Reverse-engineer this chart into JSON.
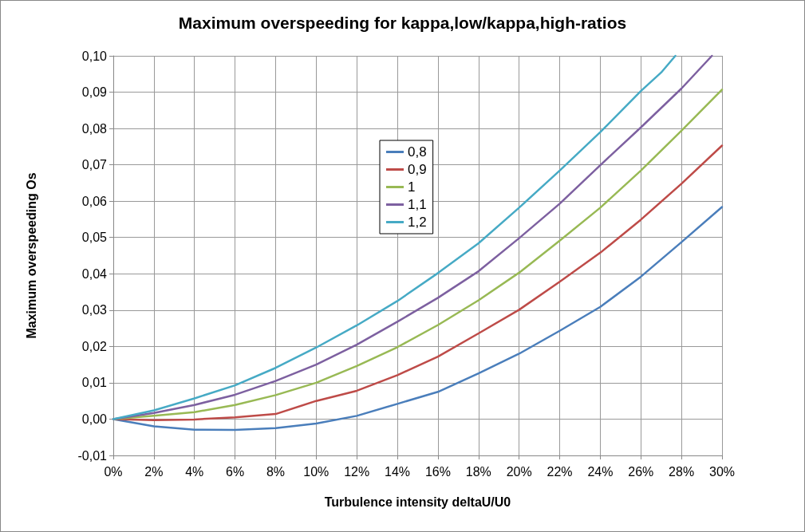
{
  "chart_data": {
    "type": "line",
    "title": "Maximum overspeeding for kappa,low/kappa,high-ratios",
    "xlabel": "Turbulence intensity deltaU/U0",
    "ylabel": "Maximum overspeeding Os",
    "x": [
      0,
      2,
      4,
      6,
      8,
      10,
      12,
      14,
      16,
      18,
      20,
      22,
      24,
      26,
      28,
      30
    ],
    "series": [
      {
        "name": "0,8",
        "color": "#4a7ebb",
        "values": [
          0,
          -0.002,
          -0.0029,
          -0.003,
          -0.0025,
          -0.0012,
          0.0009,
          0.0042,
          0.0075,
          0.0126,
          0.018,
          0.0243,
          0.0309,
          0.0392,
          0.0487,
          0.0584
        ]
      },
      {
        "name": "0,9",
        "color": "#be4b48",
        "values": [
          0,
          -0.0003,
          -0.0001,
          0.0005,
          0.0014,
          0.005,
          0.0078,
          0.0121,
          0.0172,
          0.0236,
          0.0301,
          0.0378,
          0.0458,
          0.0549,
          0.0648,
          0.0753
        ]
      },
      {
        "name": "1",
        "color": "#98b954",
        "values": [
          0,
          0.0009,
          0.0019,
          0.0039,
          0.0066,
          0.01,
          0.0146,
          0.0198,
          0.0259,
          0.0327,
          0.0403,
          0.0491,
          0.0582,
          0.0684,
          0.0794,
          0.0907
        ]
      },
      {
        "name": "1,1",
        "color": "#7d60a0",
        "x": [
          0,
          2,
          4,
          6,
          8,
          10,
          12,
          14,
          16,
          18,
          20,
          22,
          24,
          26,
          28,
          29.5
        ],
        "values": [
          0,
          0.0017,
          0.0039,
          0.0067,
          0.0105,
          0.015,
          0.0205,
          0.0268,
          0.0334,
          0.0407,
          0.0498,
          0.0593,
          0.0699,
          0.0803,
          0.091,
          0.1
        ]
      },
      {
        "name": "1,2",
        "color": "#46aac5",
        "x": [
          0,
          2,
          4,
          6,
          8,
          10,
          12,
          14,
          16,
          18,
          20,
          22,
          24,
          26,
          27,
          27.7
        ],
        "values": [
          0,
          0.0024,
          0.0057,
          0.0093,
          0.0141,
          0.0197,
          0.0258,
          0.0325,
          0.0402,
          0.0484,
          0.0582,
          0.0684,
          0.079,
          0.0903,
          0.0954,
          0.1
        ]
      }
    ],
    "xlim": [
      0,
      30
    ],
    "xticks": [
      {
        "value": 0,
        "label": "0%"
      },
      {
        "value": 2,
        "label": "2%"
      },
      {
        "value": 4,
        "label": "4%"
      },
      {
        "value": 6,
        "label": "6%"
      },
      {
        "value": 8,
        "label": "8%"
      },
      {
        "value": 10,
        "label": "10%"
      },
      {
        "value": 12,
        "label": "12%"
      },
      {
        "value": 14,
        "label": "14%"
      },
      {
        "value": 16,
        "label": "16%"
      },
      {
        "value": 18,
        "label": "18%"
      },
      {
        "value": 20,
        "label": "20%"
      },
      {
        "value": 22,
        "label": "22%"
      },
      {
        "value": 24,
        "label": "24%"
      },
      {
        "value": 26,
        "label": "26%"
      },
      {
        "value": 28,
        "label": "28%"
      },
      {
        "value": 30,
        "label": "30%"
      }
    ],
    "ylim": [
      -0.01,
      0.1
    ],
    "yticks": [
      {
        "value": -0.01,
        "label": "-0,01"
      },
      {
        "value": 0,
        "label": "0,00"
      },
      {
        "value": 0.01,
        "label": "0,01"
      },
      {
        "value": 0.02,
        "label": "0,02"
      },
      {
        "value": 0.03,
        "label": "0,03"
      },
      {
        "value": 0.04,
        "label": "0,04"
      },
      {
        "value": 0.05,
        "label": "0,05"
      },
      {
        "value": 0.06,
        "label": "0,06"
      },
      {
        "value": 0.07,
        "label": "0,07"
      },
      {
        "value": 0.08,
        "label": "0,08"
      },
      {
        "value": 0.09,
        "label": "0,09"
      },
      {
        "value": 0.1,
        "label": "0,10"
      }
    ],
    "grid": true,
    "legend": "top",
    "marker": "none",
    "line_style": "solid"
  }
}
